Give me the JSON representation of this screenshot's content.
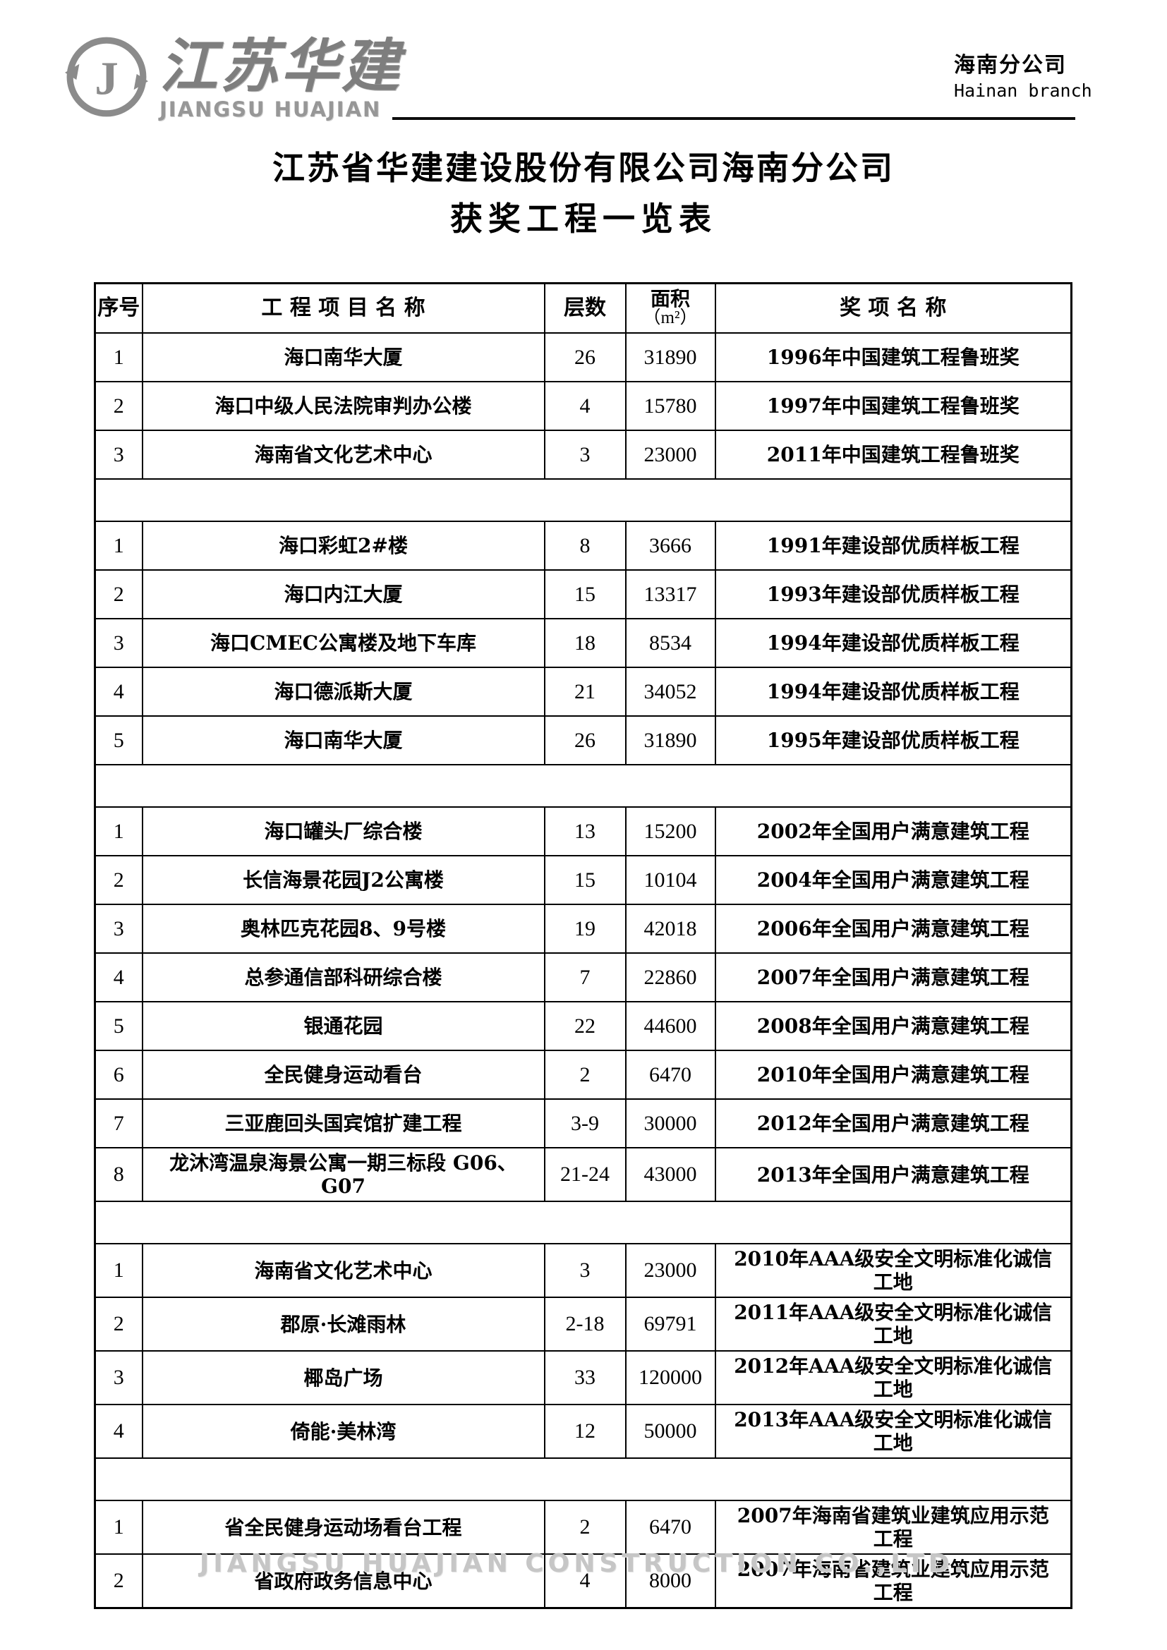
{
  "header": {
    "logo": {
      "initial": "J",
      "brand_cn": "江苏华建",
      "brand_en": "JIANGSU HUAJIAN",
      "color": "#8b8b8b"
    },
    "branch_cn": "海南分公司",
    "branch_en": "Hainan branch"
  },
  "title": "江苏省华建建设股份有限公司海南分公司",
  "subtitle": "获奖工程一览表",
  "table": {
    "header": {
      "no": "序号",
      "name": "工 程 项 目 名 称",
      "floors": "层数",
      "area": "面积",
      "area_unit": "（m²）",
      "award": "奖 项 名 称"
    },
    "groups": [
      {
        "rows": [
          {
            "no": "1",
            "name": "海口南华大厦",
            "floors": "26",
            "area": "31890",
            "award": "1996年中国建筑工程鲁班奖"
          },
          {
            "no": "2",
            "name": "海口中级人民法院审判办公楼",
            "floors": "4",
            "area": "15780",
            "award": "1997年中国建筑工程鲁班奖"
          },
          {
            "no": "3",
            "name": "海南省文化艺术中心",
            "floors": "3",
            "area": "23000",
            "award": "2011年中国建筑工程鲁班奖"
          }
        ]
      },
      {
        "rows": [
          {
            "no": "1",
            "name": "海口彩虹2#楼",
            "floors": "8",
            "area": "3666",
            "award": "1991年建设部优质样板工程"
          },
          {
            "no": "2",
            "name": "海口内江大厦",
            "floors": "15",
            "area": "13317",
            "award": "1993年建设部优质样板工程"
          },
          {
            "no": "3",
            "name": "海口CMEC公寓楼及地下车库",
            "floors": "18",
            "area": "8534",
            "award": "1994年建设部优质样板工程"
          },
          {
            "no": "4",
            "name": "海口德派斯大厦",
            "floors": "21",
            "area": "34052",
            "award": "1994年建设部优质样板工程"
          },
          {
            "no": "5",
            "name": "海口南华大厦",
            "floors": "26",
            "area": "31890",
            "award": "1995年建设部优质样板工程"
          }
        ]
      },
      {
        "rows": [
          {
            "no": "1",
            "name": "海口罐头厂综合楼",
            "floors": "13",
            "area": "15200",
            "award": "2002年全国用户满意建筑工程"
          },
          {
            "no": "2",
            "name": "长信海景花园J2公寓楼",
            "floors": "15",
            "area": "10104",
            "award": "2004年全国用户满意建筑工程"
          },
          {
            "no": "3",
            "name": "奥林匹克花园8、9号楼",
            "floors": "19",
            "area": "42018",
            "award": "2006年全国用户满意建筑工程"
          },
          {
            "no": "4",
            "name": "总参通信部科研综合楼",
            "floors": "7",
            "area": "22860",
            "award": "2007年全国用户满意建筑工程"
          },
          {
            "no": "5",
            "name": "银通花园",
            "floors": "22",
            "area": "44600",
            "award": "2008年全国用户满意建筑工程"
          },
          {
            "no": "6",
            "name": "全民健身运动看台",
            "floors": "2",
            "area": "6470",
            "award": "2010年全国用户满意建筑工程"
          },
          {
            "no": "7",
            "name": "三亚鹿回头国宾馆扩建工程",
            "floors": "3-9",
            "area": "30000",
            "award": "2012年全国用户满意建筑工程"
          },
          {
            "no": "8",
            "name": "龙沐湾温泉海景公寓一期三标段 G06、G07",
            "floors": "21-24",
            "area": "43000",
            "award": "2013年全国用户满意建筑工程"
          }
        ]
      },
      {
        "rows": [
          {
            "no": "1",
            "name": "海南省文化艺术中心",
            "floors": "3",
            "area": "23000",
            "award": "2010年AAA级安全文明标准化诚信工地"
          },
          {
            "no": "2",
            "name": "郡原·长滩雨林",
            "floors": "2-18",
            "area": "69791",
            "award": "2011年AAA级安全文明标准化诚信工地"
          },
          {
            "no": "3",
            "name": "椰岛广场",
            "floors": "33",
            "area": "120000",
            "award": "2012年AAA级安全文明标准化诚信工地"
          },
          {
            "no": "4",
            "name": "倚能·美林湾",
            "floors": "12",
            "area": "50000",
            "award": "2013年AAA级安全文明标准化诚信工地"
          }
        ]
      },
      {
        "rows": [
          {
            "no": "1",
            "name": "省全民健身运动场看台工程",
            "floors": "2",
            "area": "6470",
            "award": "2007年海南省建筑业建筑应用示范工程"
          },
          {
            "no": "2",
            "name": "省政府政务信息中心",
            "floors": "4",
            "area": "8000",
            "award": "2007年海南省建筑业建筑应用示范工程"
          }
        ]
      }
    ]
  },
  "footer": "JIANGSU HUAJIAN CONSTRUCTION CO.,LTD."
}
